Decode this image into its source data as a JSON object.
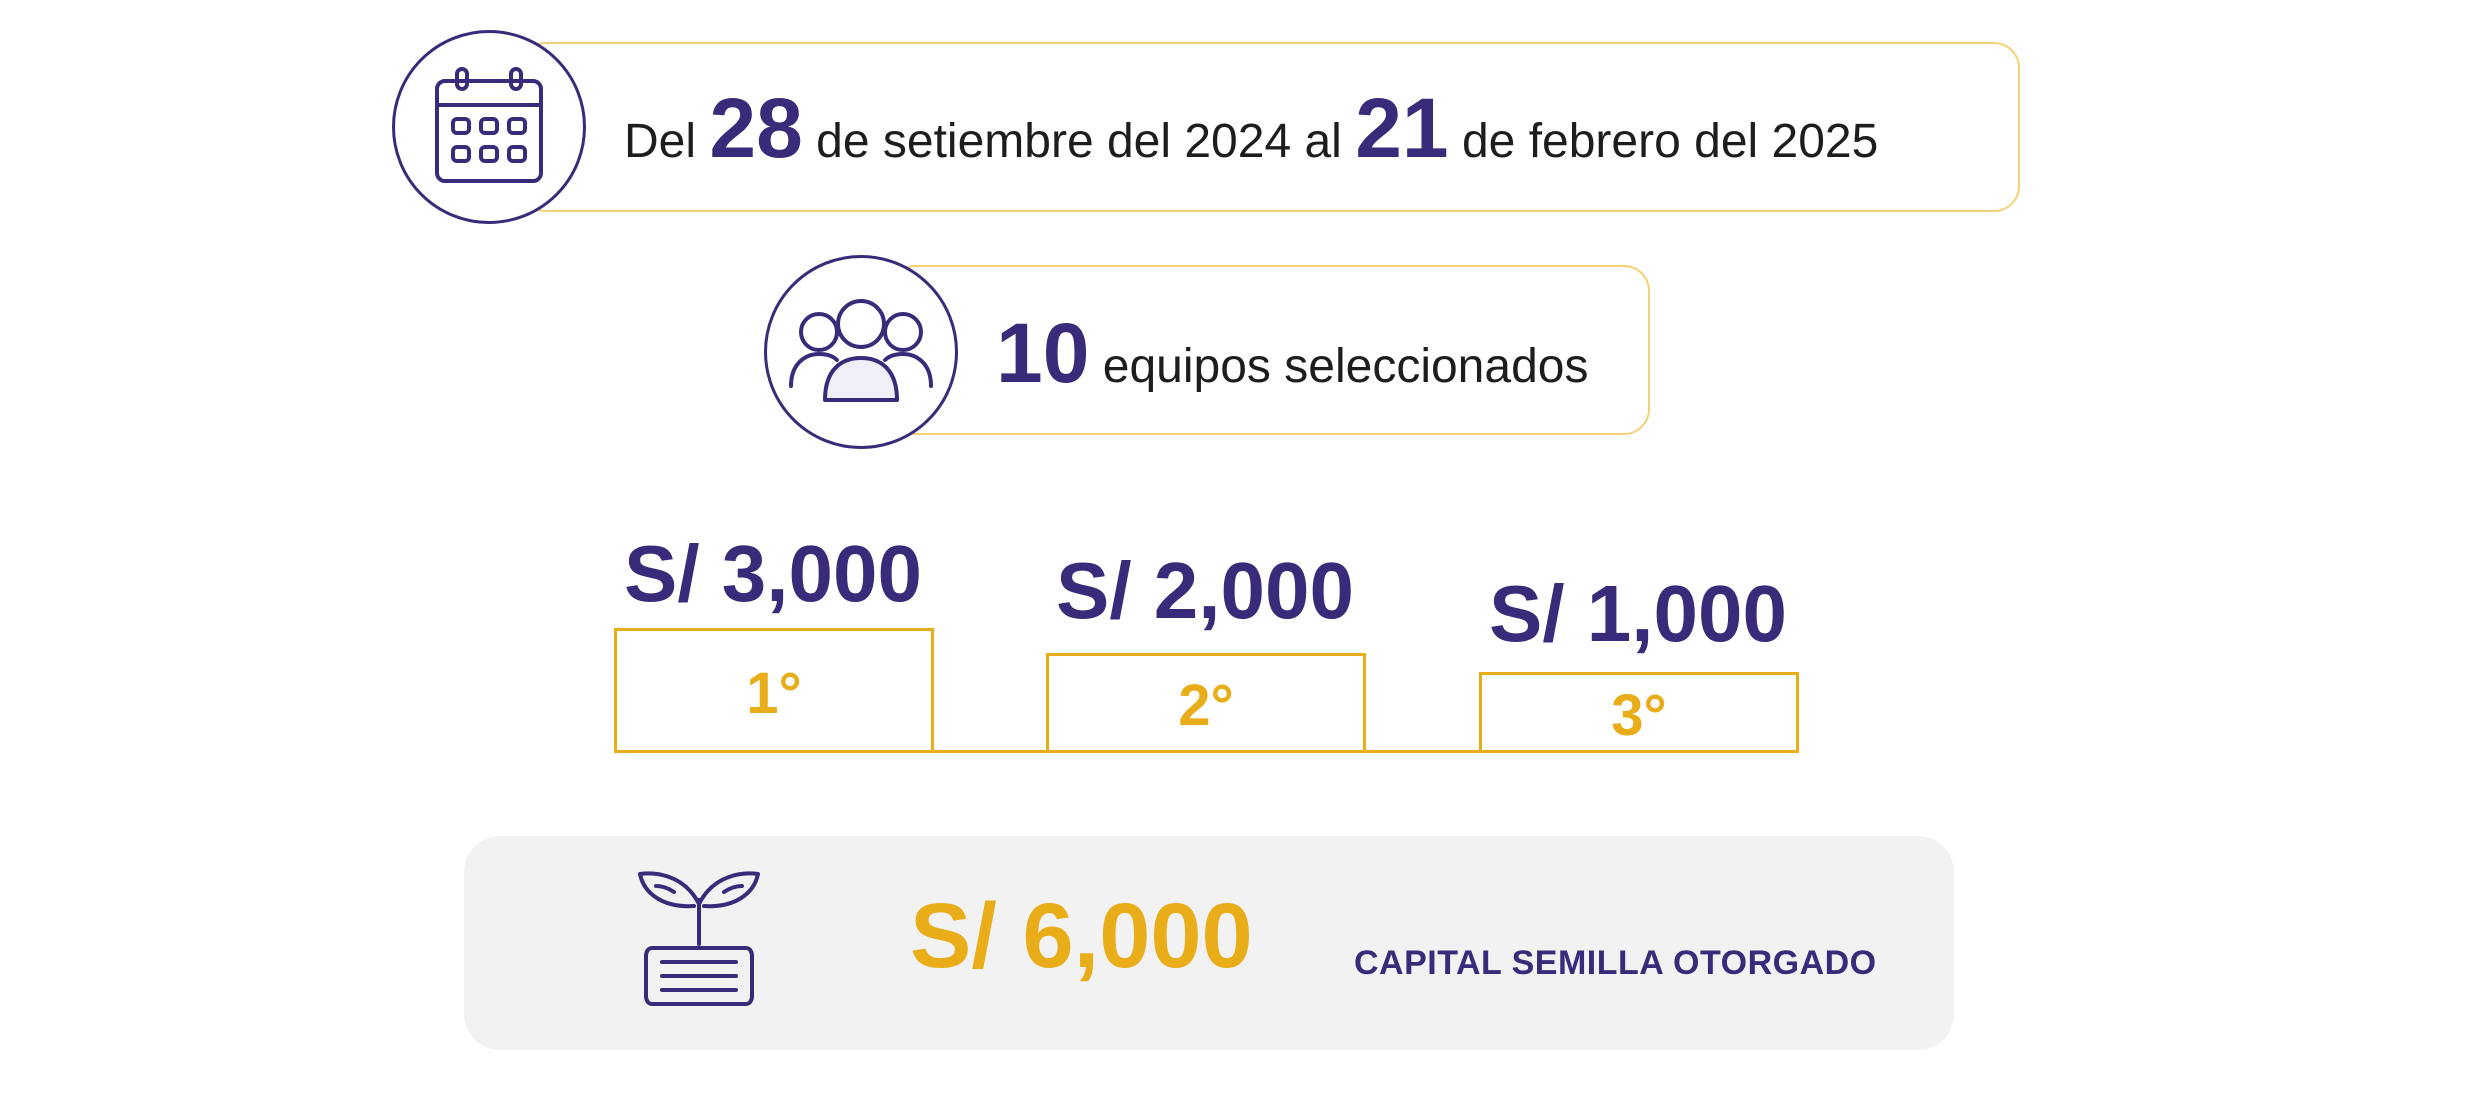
{
  "dates": {
    "prefix": "Del",
    "start_day": "28",
    "start_rest": "de setiembre del 2024 al",
    "end_day": "21",
    "end_rest": "de febrero del 2025",
    "icon": "calendar-icon"
  },
  "teams": {
    "count": "10",
    "label": "equipos seleccionados",
    "icon": "group-icon"
  },
  "prizes": [
    {
      "amount": "S/ 3,000",
      "place": "1°"
    },
    {
      "amount": "S/ 2,000",
      "place": "2°"
    },
    {
      "amount": "S/ 1,000",
      "place": "3°"
    }
  ],
  "capital": {
    "amount": "S/ 6,000",
    "label": "CAPITAL SEMILLA OTORGADO",
    "icon": "sprout-money-icon"
  },
  "colors": {
    "purple": "#3a2b7a",
    "gold": "#e9ad1a",
    "pill_border": "#f2d275",
    "banner_bg": "#f2f2f2"
  }
}
